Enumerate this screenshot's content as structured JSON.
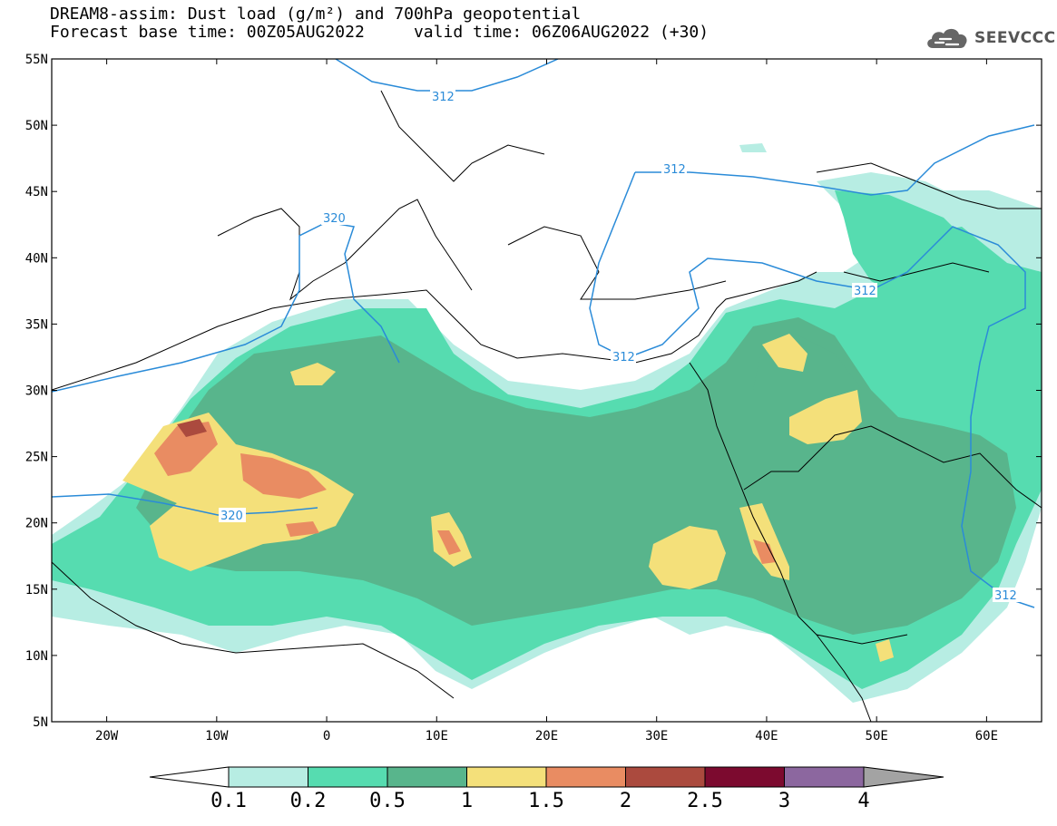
{
  "title": {
    "line1": "DREAM8-assim: Dust load (g/m²) and 700hPa geopotential",
    "line2": "Forecast base time: 00Z05AUG2022     valid time: 06Z06AUG2022 (+30)"
  },
  "logo": {
    "icon": "cloud-icon",
    "text": "SEEVCCC"
  },
  "map": {
    "lat_labels": [
      "55N",
      "50N",
      "45N",
      "40N",
      "35N",
      "30N",
      "25N",
      "20N",
      "15N",
      "10N",
      "5N"
    ],
    "lon_labels": [
      "20W",
      "10W",
      "0",
      "10E",
      "20E",
      "30E",
      "40E",
      "50E",
      "60E"
    ],
    "lat_range": [
      5,
      55
    ],
    "lon_range": [
      -25,
      65
    ],
    "contour_labels": [
      "312",
      "320",
      "312",
      "312",
      "312",
      "320",
      "312"
    ]
  },
  "colorbar": {
    "labels": [
      "0.1",
      "0.2",
      "0.5",
      "1",
      "1.5",
      "2",
      "2.5",
      "3",
      "4"
    ],
    "colors": [
      "#ffffff",
      "#b7ede3",
      "#56dcb0",
      "#58b58c",
      "#f4e07a",
      "#e98c62",
      "#ab4a3e",
      "#7c0a2f",
      "#8c679f",
      "#a3a3a3"
    ]
  },
  "colors": {
    "contour": "#2a8bd8",
    "border": "#000000"
  }
}
